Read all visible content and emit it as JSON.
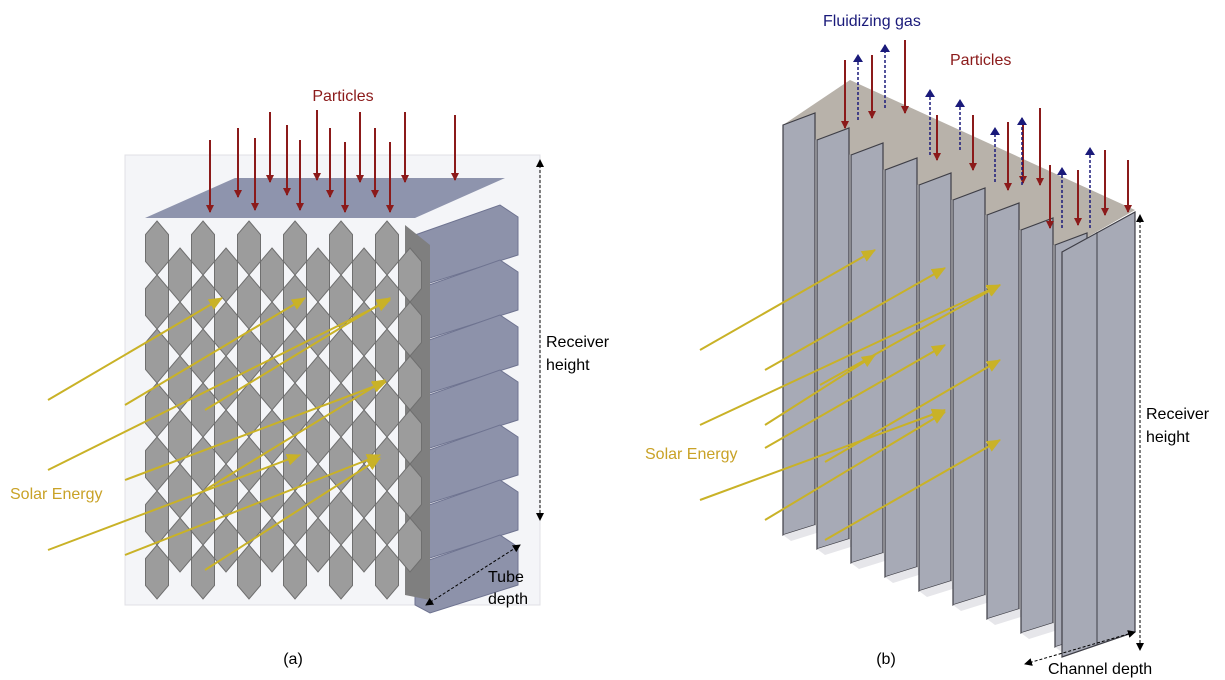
{
  "panel_a": {
    "label": "(a)",
    "particles": "Particles",
    "solar_energy": "Solar Energy",
    "receiver_height": [
      "Receiver",
      "height"
    ],
    "tube_depth": [
      "Tube",
      "depth"
    ]
  },
  "panel_b": {
    "label": "(b)",
    "fluidizing_gas": "Fluidizing gas",
    "particles": "Particles",
    "solar_energy": "Solar Energy",
    "receiver_height": [
      "Receiver",
      "height"
    ],
    "channel_depth": "Channel depth"
  }
}
